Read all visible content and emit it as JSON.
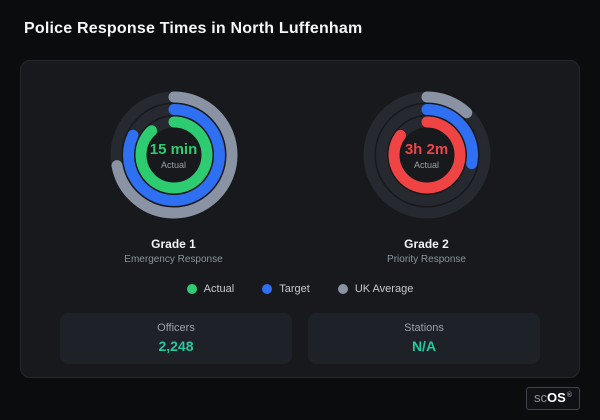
{
  "page": {
    "title": "Police Response Times in North Luffenham"
  },
  "legend": [
    {
      "label": "Actual",
      "color": "#2ecc71"
    },
    {
      "label": "Target",
      "color": "#2f6ff2"
    },
    {
      "label": "UK Average",
      "color": "#8a93a3"
    }
  ],
  "stats": [
    {
      "label": "Officers",
      "value": "2,248"
    },
    {
      "label": "Stations",
      "value": "N/A"
    }
  ],
  "logo": {
    "prefix": "sc",
    "suffix": "OS",
    "registered": "®"
  },
  "chart_data": {
    "type": "radial-gauge",
    "track_color": "#262930",
    "gauges": [
      {
        "title": "Grade 1",
        "subtitle": "Emergency Response",
        "center_value": "15 min",
        "center_label": "Actual",
        "value_color": "#2ecc71",
        "rings": [
          {
            "name": "UK Average",
            "color": "#8a93a3",
            "percent": 72
          },
          {
            "name": "Target",
            "color": "#2f6ff2",
            "percent": 82
          },
          {
            "name": "Actual",
            "color": "#2ecc71",
            "percent": 88
          }
        ]
      },
      {
        "title": "Grade 2",
        "subtitle": "Priority Response",
        "center_value": "3h 2m",
        "center_label": "Actual",
        "value_color": "#f04444",
        "rings": [
          {
            "name": "UK Average",
            "color": "#8a93a3",
            "percent": 12
          },
          {
            "name": "Target",
            "color": "#2f6ff2",
            "percent": 28
          },
          {
            "name": "Actual",
            "color": "#f04444",
            "percent": 85
          }
        ]
      }
    ]
  }
}
